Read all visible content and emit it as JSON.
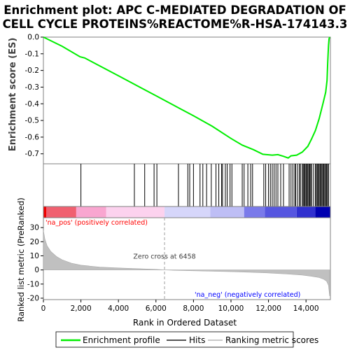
{
  "chart_data": {
    "type": "line",
    "title_line1": "Enrichment plot: APC C-MEDIATED DEGRADATION OF",
    "title_line2": "CELL CYCLE PROTEINS%REACTOME%R-HSA-174143.3",
    "xlabel": "Rank in Ordered Dataset",
    "ylabel_top": "Enrichment score (ES)",
    "ylabel_bottom": "Ranked list metric (PreRanked)",
    "x_ticks": [
      0,
      2000,
      4000,
      6000,
      8000,
      10000,
      12000,
      14000
    ],
    "x_tick_labels": [
      "0",
      "2,000",
      "4,000",
      "6,000",
      "8,000",
      "10,000",
      "12,000",
      "14,000"
    ],
    "xlim": [
      0,
      15300
    ],
    "es_yticks": [
      0.0,
      -0.1,
      -0.2,
      -0.3,
      -0.4,
      -0.5,
      -0.6,
      -0.7
    ],
    "es_ytick_labels": [
      "0.0",
      "-0.1",
      "-0.2",
      "-0.3",
      "-0.4",
      "-0.5",
      "-0.6",
      "-0.7"
    ],
    "es_ylim": [
      -0.76,
      0.0
    ],
    "metric_yticks": [
      30,
      20,
      10,
      0,
      -10,
      -20
    ],
    "metric_ytick_labels": [
      "30",
      "20",
      "10",
      "0",
      "-10",
      "-20"
    ],
    "metric_ylim": [
      -21,
      37
    ],
    "es_series": {
      "name": "Enrichment profile",
      "color": "#00ee00",
      "x": [
        0,
        1000,
        1950,
        2200,
        4000,
        6000,
        8000,
        9000,
        10000,
        10600,
        11200,
        11700,
        12200,
        12500,
        12800,
        13050,
        13200,
        13500,
        13800,
        14100,
        14300,
        14500,
        14700,
        14900,
        15050,
        15120,
        15160,
        15200,
        15230,
        15260
      ],
      "y": [
        0.0,
        -0.055,
        -0.118,
        -0.125,
        -0.232,
        -0.352,
        -0.472,
        -0.535,
        -0.608,
        -0.648,
        -0.675,
        -0.703,
        -0.708,
        -0.705,
        -0.715,
        -0.725,
        -0.712,
        -0.708,
        -0.69,
        -0.655,
        -0.61,
        -0.56,
        -0.49,
        -0.4,
        -0.33,
        -0.26,
        -0.15,
        -0.05,
        -0.01,
        0.0
      ]
    },
    "hits": [
      2000,
      4850,
      5400,
      5900,
      6050,
      7200,
      7700,
      7800,
      8000,
      8350,
      8500,
      8700,
      8950,
      9200,
      9350,
      9500,
      9550,
      9700,
      9800,
      9950,
      10050,
      10600,
      10700,
      10900,
      11050,
      11150,
      11750,
      11850,
      12000,
      12100,
      12200,
      12300,
      12400,
      12500,
      12650,
      12800,
      13100,
      13200,
      13300,
      13400,
      13450,
      13550,
      13650,
      13700,
      13800,
      13850,
      13900,
      13950,
      14000,
      14050,
      14100,
      14150,
      14200,
      14250,
      14300,
      14400,
      14500,
      14550,
      14600,
      14650,
      14700,
      14750,
      14800,
      14850,
      14900,
      14950,
      15000,
      15050,
      15100,
      15150,
      15200
    ],
    "zero_cross": 6458,
    "zero_cross_label": "Zero cross at 6458",
    "pos_label": "'na_pos' (positively correlated)",
    "neg_label": "'na_neg' (negatively correlated)",
    "metric_curve": {
      "x": [
        0,
        80,
        200,
        400,
        700,
        1000,
        1500,
        2000,
        3000,
        4000,
        5000,
        6000,
        6458,
        7000,
        8000,
        9000,
        10000,
        11000,
        12000,
        13000,
        13800,
        14300,
        14700,
        14950,
        15100,
        15200,
        15260
      ],
      "y": [
        28,
        22,
        17,
        13,
        9.5,
        7.2,
        4.8,
        3.4,
        2.0,
        1.4,
        0.9,
        0.4,
        0.0,
        -0.3,
        -0.6,
        -0.9,
        -1.2,
        -1.6,
        -2.1,
        -2.9,
        -3.6,
        -4.5,
        -5.4,
        -6.6,
        -8.0,
        -11.0,
        -18.5
      ]
    },
    "colors": {
      "es_line": "#00ee00",
      "hit": "#000000",
      "metric_fill": "#c0c0c0",
      "pos_text": "#ff0000",
      "neg_text": "#0000ff",
      "zero_line": "#a0a0a0"
    }
  },
  "legend": {
    "items": [
      {
        "label": "Enrichment profile",
        "color": "#00ee00"
      },
      {
        "label": "Hits",
        "color": "#555555"
      },
      {
        "label": "Ranking metric scores",
        "color": "#c8c8c8"
      }
    ]
  }
}
